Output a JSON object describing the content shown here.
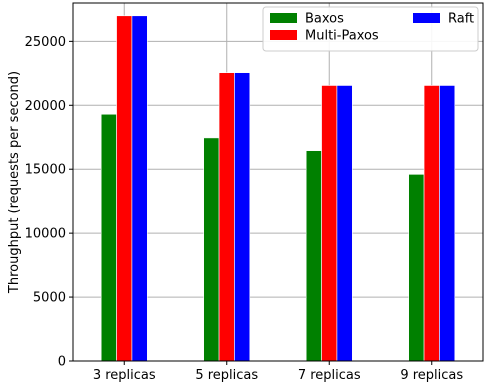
{
  "chart_data": {
    "type": "bar",
    "title": "",
    "xlabel": "",
    "ylabel": "Throughput (requests per second)",
    "categories": [
      "3 replicas",
      "5 replicas",
      "7 replicas",
      "9 replicas"
    ],
    "ylim": [
      0,
      28000
    ],
    "yticks": [
      0,
      5000,
      10000,
      15000,
      20000,
      25000
    ],
    "grid": true,
    "legend_position": "top-right",
    "legend_columns": 2,
    "series": [
      {
        "name": "Baxos",
        "color": "#008000",
        "values": [
          19300,
          17450,
          16450,
          14600
        ]
      },
      {
        "name": "Multi-Paxos",
        "color": "#ff0000",
        "values": [
          27000,
          22550,
          21550,
          21550
        ]
      },
      {
        "name": "Raft",
        "color": "#0000ff",
        "values": [
          27000,
          22550,
          21550,
          21550
        ]
      }
    ]
  }
}
